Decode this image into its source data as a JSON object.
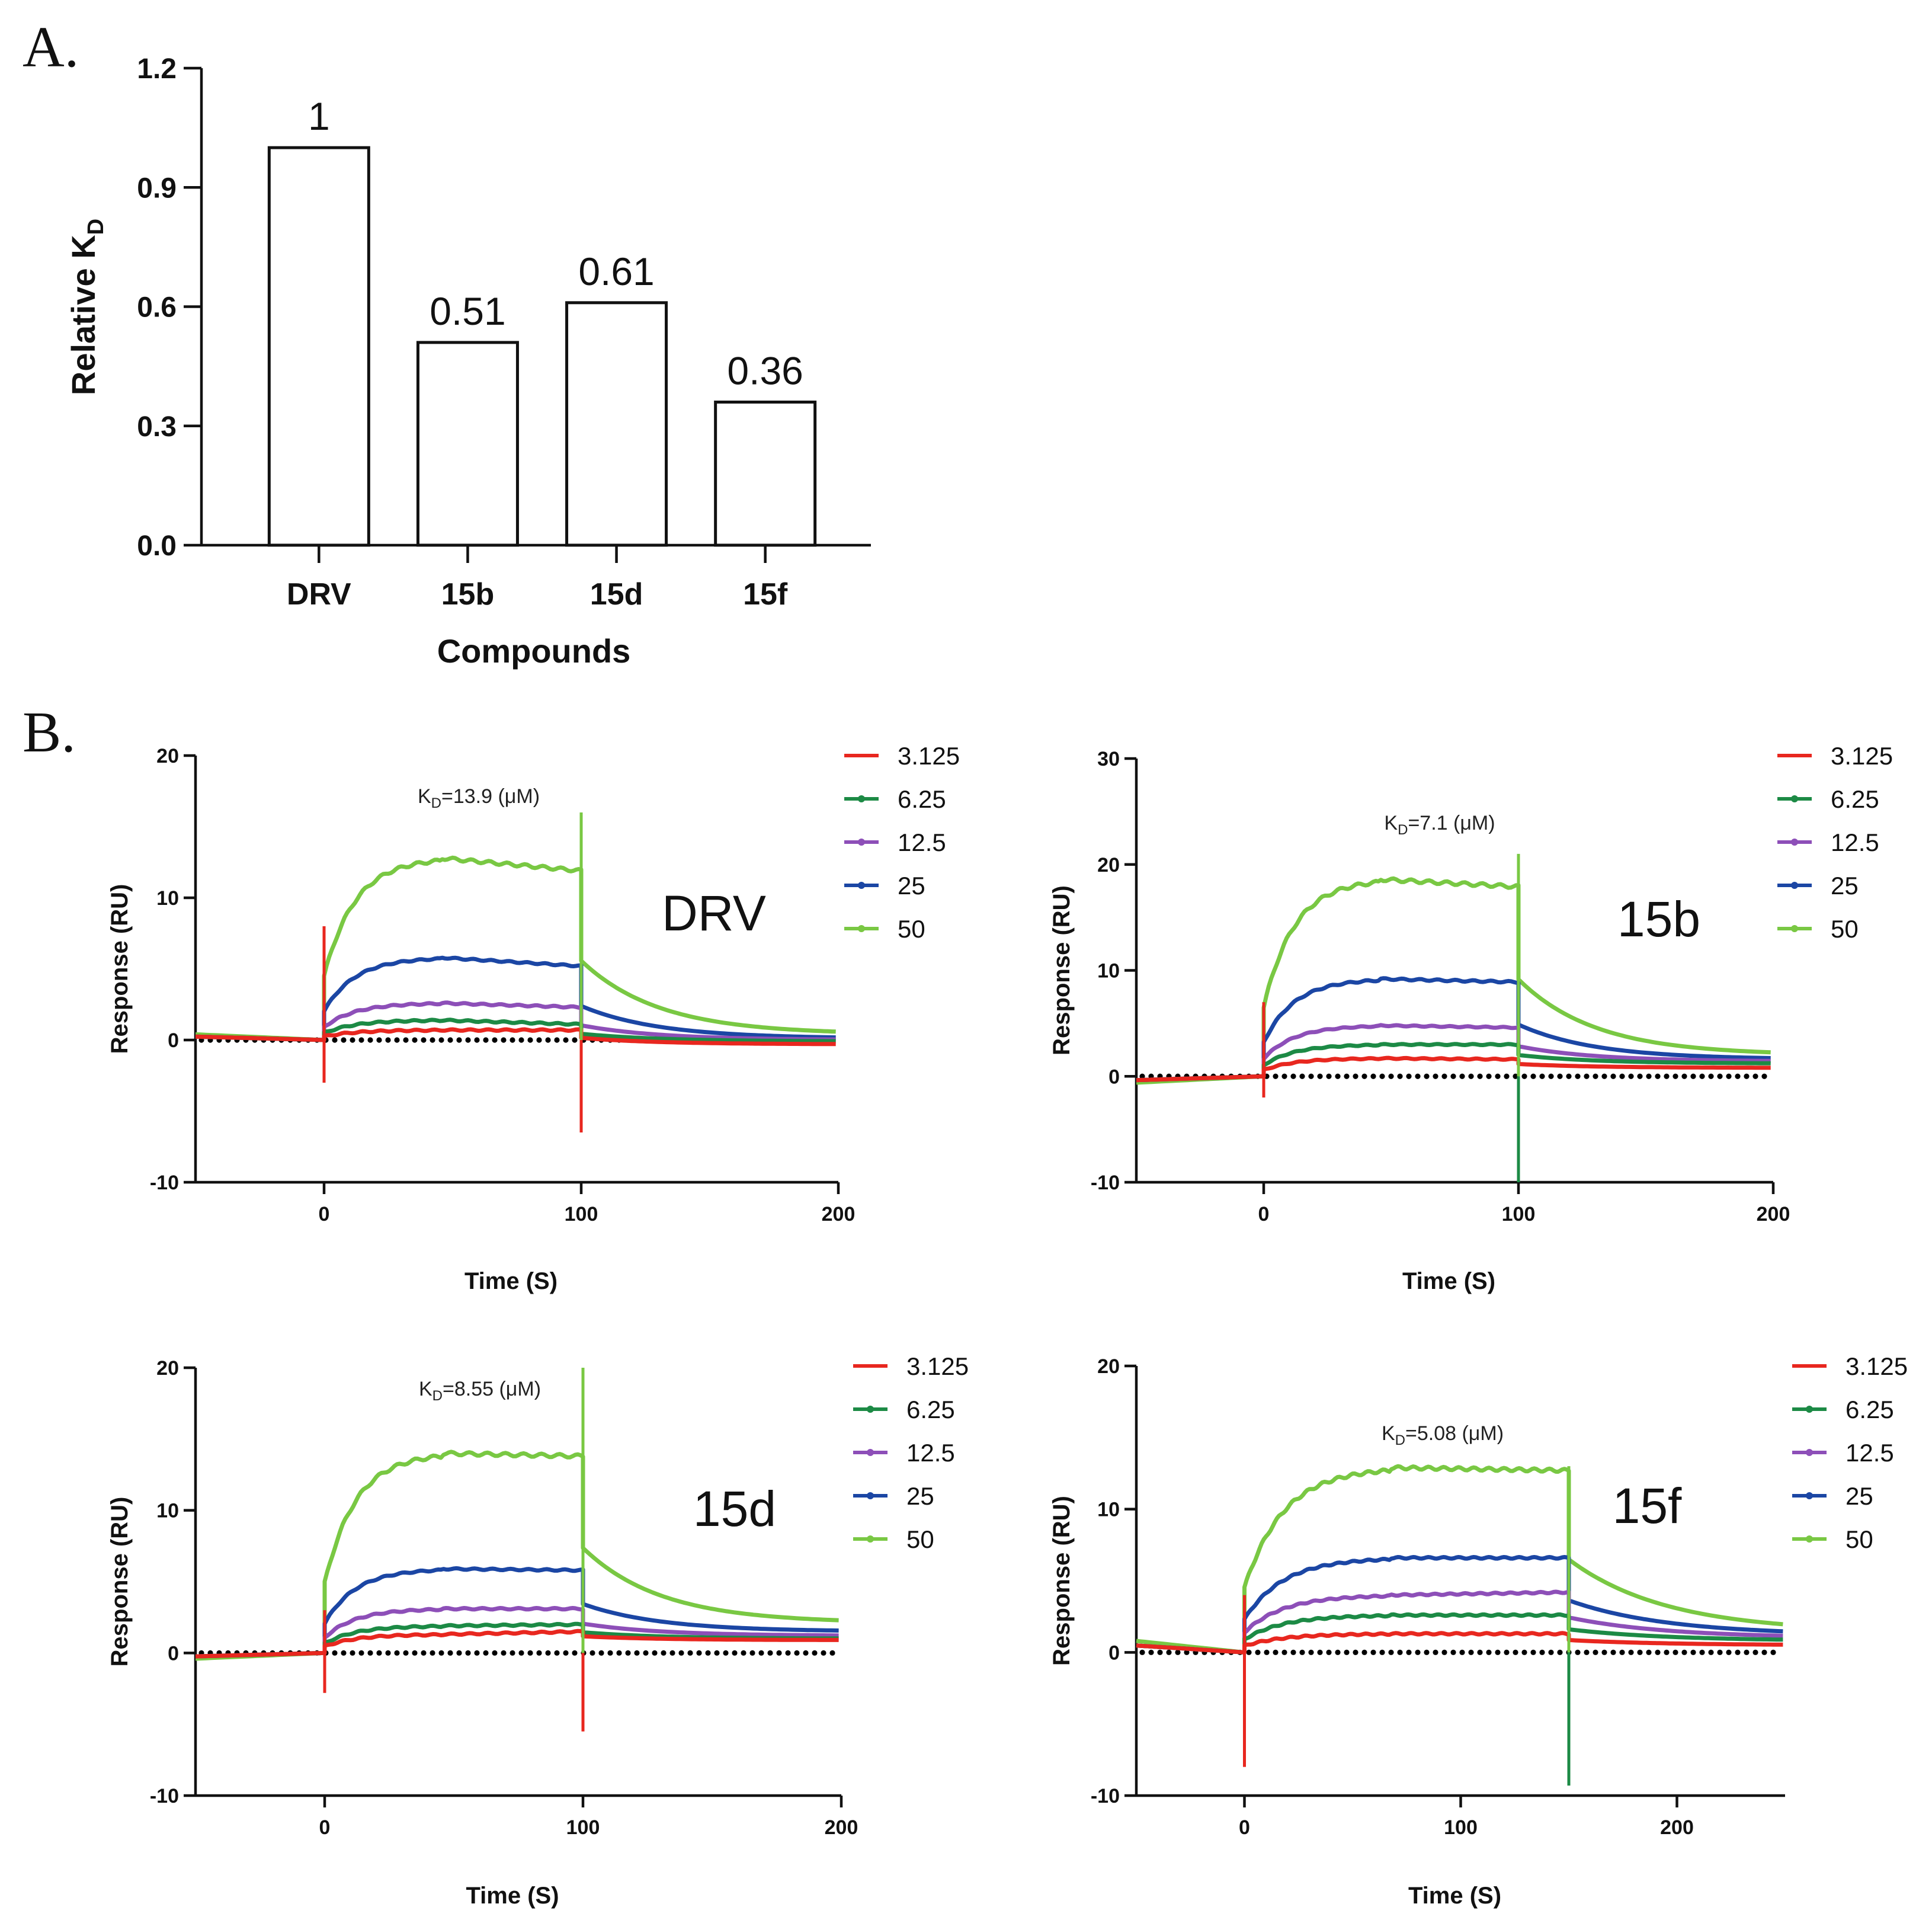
{
  "colors": {
    "3.125": "#e8271f",
    "6.25": "#1c8a45",
    "12.5": "#8d4fb8",
    "25": "#1b46a4",
    "50": "#79c843",
    "axis": "#111111",
    "baseline_dots": "#000000"
  },
  "chart_data": [
    {
      "panel": "A.",
      "type": "bar",
      "categories": [
        "DRV",
        "15b",
        "15d",
        "15f"
      ],
      "values": [
        1,
        0.51,
        0.61,
        0.36
      ],
      "value_labels": [
        "1",
        "0.51",
        "0.61",
        "0.36"
      ],
      "title": "",
      "xlabel": "Compounds",
      "ylabel_main": "Relative K",
      "ylabel_sub": "D",
      "ylim": [
        0,
        1.2
      ],
      "yticks": [
        0,
        0.3,
        0.6,
        0.9,
        1.2
      ],
      "ytick_labels": [
        "0.0",
        "0.3",
        "0.6",
        "0.9",
        "1.2"
      ]
    },
    {
      "panel": "B.",
      "type": "line",
      "compound": "DRV",
      "kd_prefix": "K",
      "kd_sub": "D",
      "kd_value": "=13.9 (μM)",
      "xlabel": "Time (S)",
      "ylabel": "Response (RU)",
      "xlim": [
        -50,
        200
      ],
      "ylim": [
        -10,
        20
      ],
      "xticks": [
        0,
        100,
        200
      ],
      "yticks": [
        -10,
        0,
        10,
        20
      ],
      "dissociation_start": 100,
      "legend": [
        "3.125",
        "6.25",
        "12.5",
        "25",
        "50"
      ],
      "plateau": {
        "3.125": 0.7,
        "6.25": 1.4,
        "12.5": 2.6,
        "25": 5.8,
        "50": 12.8
      },
      "end_value": 12,
      "series_end": {
        "3.125": 0.7,
        "6.25": 1.1,
        "12.5": 2.3,
        "25": 5.2,
        "50": 11.9
      },
      "dissoc_end": {
        "3.125": -0.3,
        "6.25": -0.1,
        "12.5": 0.0,
        "25": 0.1,
        "50": 0.4
      },
      "pre_start": 0.4,
      "spike_on": {
        "top": 8,
        "bottom": -3
      },
      "spike_off": {
        "top": 16,
        "bottom": -6.5
      }
    },
    {
      "panel": "",
      "type": "line",
      "compound": "15b",
      "kd_prefix": "K",
      "kd_sub": "D",
      "kd_value": "=7.1 (μM)",
      "xlabel": "Time (S)",
      "ylabel": "Response (RU)",
      "xlim": [
        -50,
        200
      ],
      "ylim": [
        -10,
        30
      ],
      "xticks": [
        0,
        100,
        200
      ],
      "yticks": [
        -10,
        0,
        10,
        20,
        30
      ],
      "dissociation_start": 100,
      "legend": [
        "3.125",
        "6.25",
        "12.5",
        "25",
        "50"
      ],
      "plateau": {
        "3.125": 1.7,
        "6.25": 3.0,
        "12.5": 4.8,
        "25": 9.2,
        "50": 18.6
      },
      "series_end": {
        "3.125": 1.6,
        "6.25": 3.0,
        "12.5": 4.6,
        "25": 8.9,
        "50": 17.9
      },
      "dissoc_end": {
        "3.125": 0.8,
        "6.25": 1.2,
        "12.5": 1.4,
        "25": 1.6,
        "50": 2.0
      },
      "pre_start": -0.6,
      "spike_on": {
        "top": 7,
        "bottom": -2
      },
      "spike_off": {
        "top": 21,
        "bottom": -10
      }
    },
    {
      "panel": "",
      "type": "line",
      "compound": "15d",
      "kd_prefix": "K",
      "kd_sub": "D",
      "kd_value": "=8.55 (μM)",
      "xlabel": "Time (S)",
      "ylabel": "Response (RU)",
      "xlim": [
        -50,
        200
      ],
      "ylim": [
        -10,
        20
      ],
      "xticks": [
        0,
        100,
        200
      ],
      "yticks": [
        -10,
        0,
        10,
        20
      ],
      "dissociation_start": 100,
      "legend": [
        "3.125",
        "6.25",
        "12.5",
        "25",
        "50"
      ],
      "plateau": {
        "3.125": 1.3,
        "6.25": 1.9,
        "12.5": 3.1,
        "25": 5.9,
        "50": 14.0
      },
      "series_end": {
        "3.125": 1.5,
        "6.25": 2.0,
        "12.5": 3.1,
        "25": 5.8,
        "50": 13.8
      },
      "dissoc_end": {
        "3.125": 0.9,
        "6.25": 1.0,
        "12.5": 1.2,
        "25": 1.5,
        "50": 2.1
      },
      "pre_start": -0.4,
      "spike_on": {
        "top": 3,
        "bottom": -2.8
      },
      "spike_off": {
        "top": 20,
        "bottom": -5.5
      }
    },
    {
      "panel": "",
      "type": "line",
      "compound": "15f",
      "kd_prefix": "K",
      "kd_sub": "D",
      "kd_value": "=5.08 (μM)",
      "xlabel": "Time (S)",
      "ylabel": "Response (RU)",
      "xlim": [
        -50,
        250
      ],
      "ylim": [
        -10,
        20
      ],
      "xticks": [
        0,
        100,
        200
      ],
      "yticks": [
        -10,
        0,
        10,
        20
      ],
      "dissociation_start": 150,
      "legend": [
        "3.125",
        "6.25",
        "12.5",
        "25",
        "50"
      ],
      "plateau": {
        "3.125": 1.3,
        "6.25": 2.6,
        "12.5": 4.0,
        "25": 6.6,
        "50": 12.9
      },
      "series_end": {
        "3.125": 1.3,
        "6.25": 2.6,
        "12.5": 4.2,
        "25": 6.6,
        "50": 12.7
      },
      "dissoc_end": {
        "3.125": 0.5,
        "6.25": 0.8,
        "12.5": 1.0,
        "25": 1.2,
        "50": 1.4
      },
      "pre_start": 0.8,
      "spike_on": {
        "top": 4,
        "bottom": -8
      },
      "spike_off": {
        "top": 13,
        "bottom": -9.3
      }
    }
  ]
}
